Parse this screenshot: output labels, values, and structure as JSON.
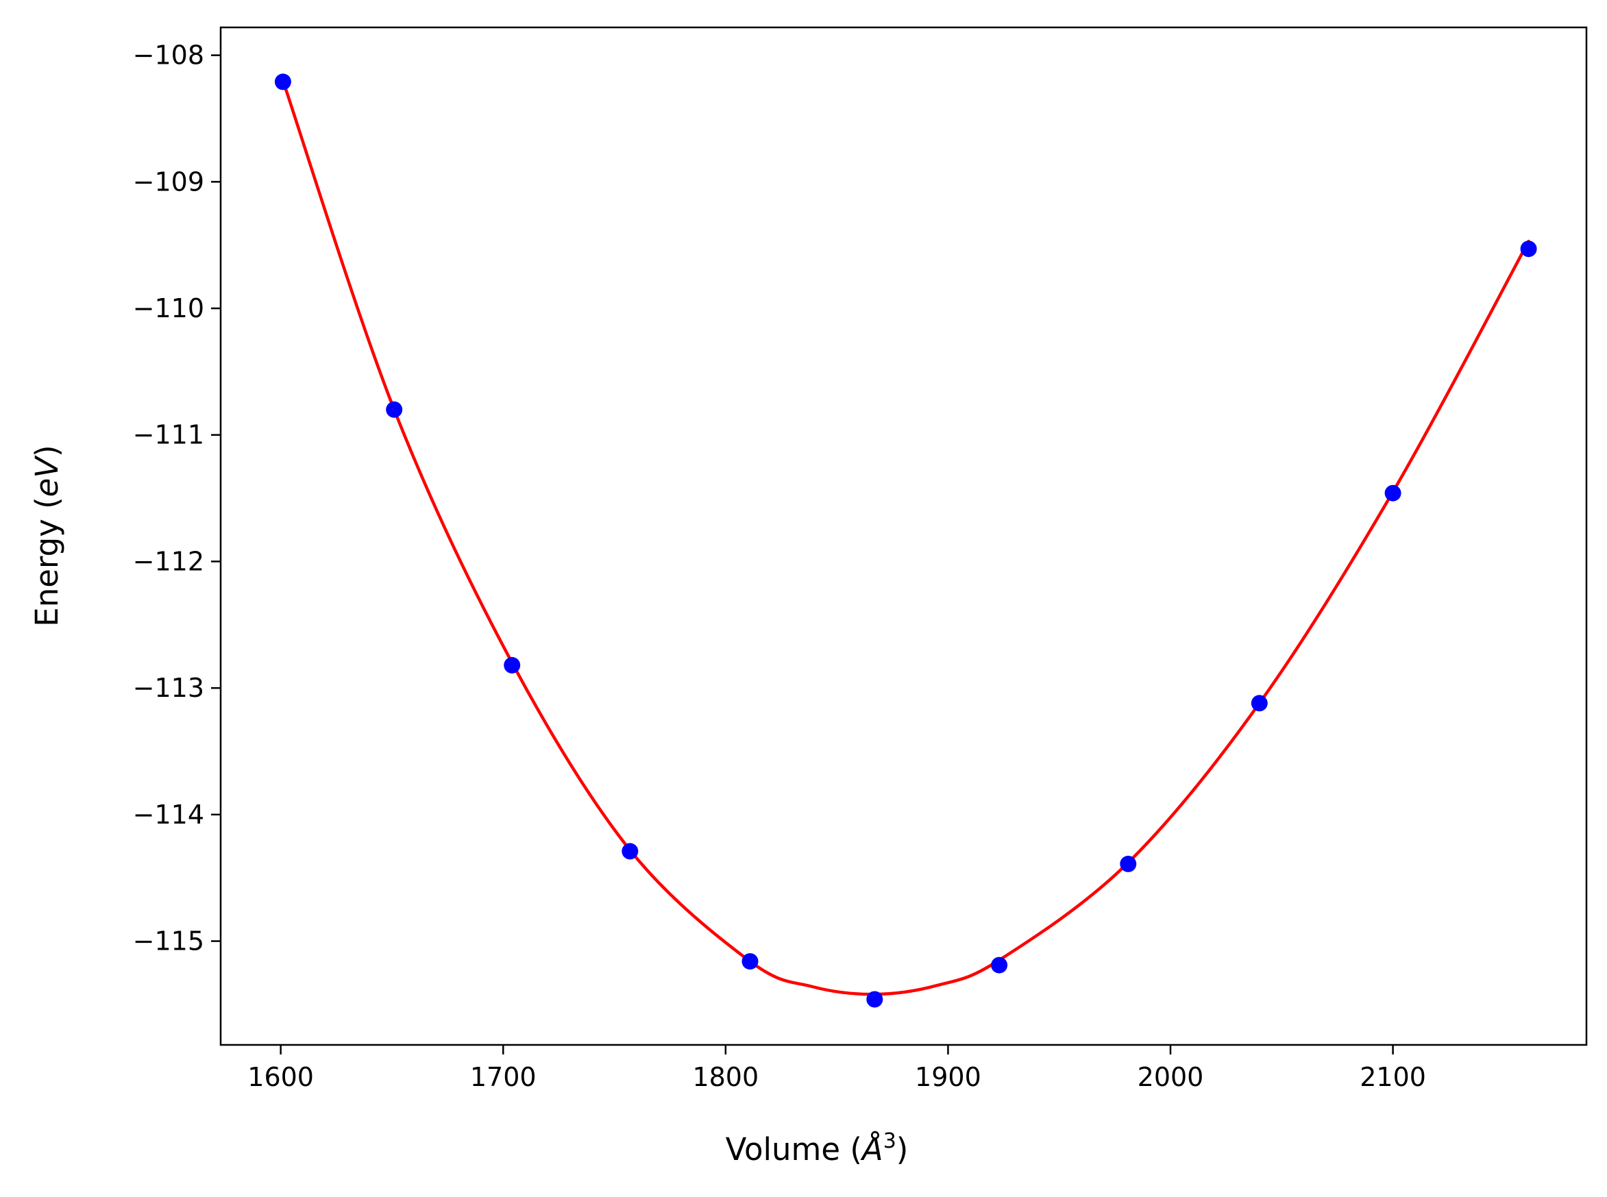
{
  "chart_data": {
    "type": "scatter",
    "title": "",
    "xlabel_main": "Volume (",
    "xlabel_symbol": "Å",
    "xlabel_exp": "3",
    "xlabel_close": ")",
    "ylabel_main": "Energy (",
    "ylabel_symbol": "eV",
    "ylabel_close": ")",
    "xlim": [
      1573,
      2187
    ],
    "ylim": [
      -115.82,
      -107.78
    ],
    "xticks": [
      1600,
      1700,
      1800,
      1900,
      2000,
      2100
    ],
    "xtick_labels": [
      "1600",
      "1700",
      "1800",
      "1900",
      "2000",
      "2100"
    ],
    "yticks": [
      -108,
      -109,
      -110,
      -111,
      -112,
      -113,
      -114,
      -115
    ],
    "ytick_labels": [
      "−108",
      "−109",
      "−110",
      "−111",
      "−112",
      "−113",
      "−114",
      "−115"
    ],
    "grid": false,
    "series": [
      {
        "kind": "points",
        "color": "#0000ff",
        "x": [
          1601,
          1651,
          1704,
          1757,
          1811,
          1867,
          1923,
          1981,
          2040,
          2100,
          2161
        ],
        "y": [
          -108.21,
          -110.8,
          -112.82,
          -114.29,
          -115.16,
          -115.46,
          -115.19,
          -114.39,
          -113.12,
          -111.46,
          -109.53
        ]
      },
      {
        "kind": "fit-curve",
        "color": "#ff0000",
        "x": [
          1601,
          1651,
          1704,
          1757,
          1811,
          1839,
          1867,
          1895,
          1923,
          1981,
          2040,
          2100,
          2161
        ],
        "y": [
          -108.2,
          -110.8,
          -112.8,
          -114.28,
          -115.16,
          -115.36,
          -115.42,
          -115.35,
          -115.15,
          -114.38,
          -113.12,
          -111.45,
          -109.47
        ]
      }
    ]
  }
}
